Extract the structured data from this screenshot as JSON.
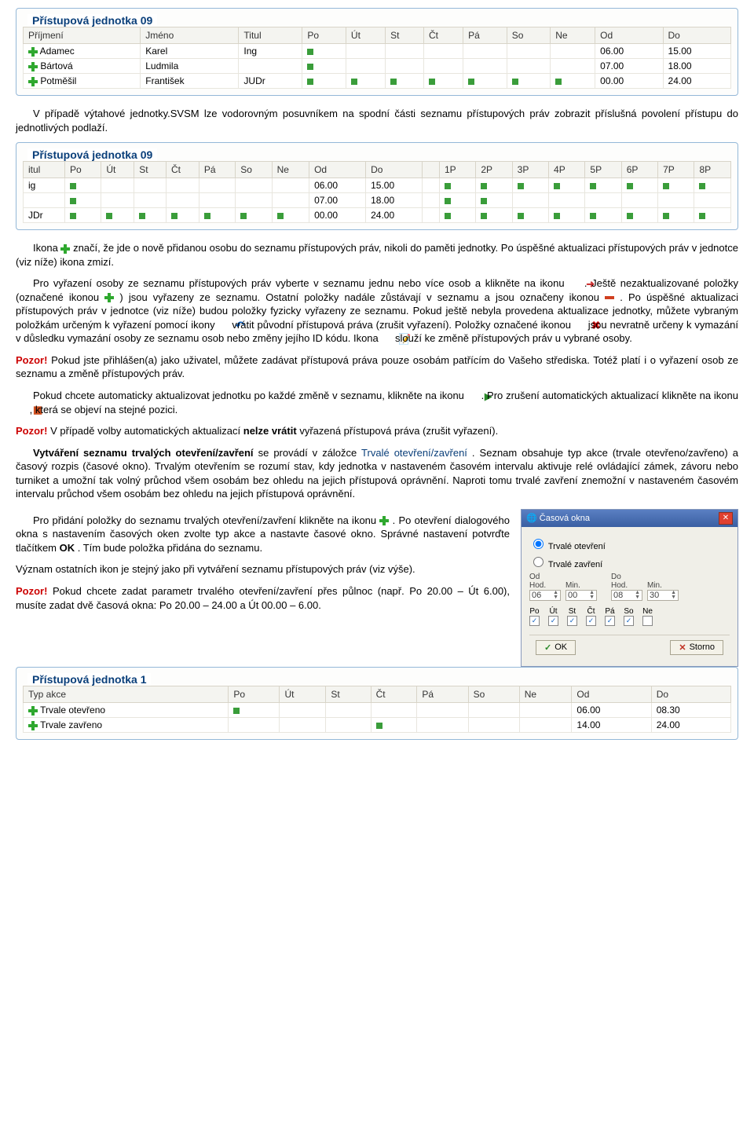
{
  "group1": {
    "title": "Přístupová jednotka 09",
    "cols": [
      "Příjmení",
      "Jméno",
      "Titul",
      "Po",
      "Út",
      "St",
      "Čt",
      "Pá",
      "So",
      "Ne",
      "Od",
      "Do"
    ],
    "rows": [
      {
        "prijmeni": "Adamec",
        "jmeno": "Karel",
        "titul": "Ing",
        "days": [
          1,
          0,
          0,
          0,
          0,
          0,
          0
        ],
        "od": "06.00",
        "do": "15.00"
      },
      {
        "prijmeni": "Bártová",
        "jmeno": "Ludmila",
        "titul": "",
        "days": [
          1,
          0,
          0,
          0,
          0,
          0,
          0
        ],
        "od": "07.00",
        "do": "18.00"
      },
      {
        "prijmeni": "Potměšil",
        "jmeno": "František",
        "titul": "JUDr",
        "days": [
          1,
          1,
          1,
          1,
          1,
          1,
          1
        ],
        "od": "00.00",
        "do": "24.00"
      }
    ]
  },
  "para1": "V případě výtahové jednotky.SVSM lze vodorovným posuvníkem na spodní části seznamu přístupových práv zobrazit příslušná povolení přístupu do jednotlivých podlaží.",
  "group2": {
    "title": "Přístupová jednotka 09",
    "cols": [
      "itul",
      "Po",
      "Út",
      "St",
      "Čt",
      "Pá",
      "So",
      "Ne",
      "Od",
      "Do",
      "",
      "1P",
      "2P",
      "3P",
      "4P",
      "5P",
      "6P",
      "7P",
      "8P"
    ],
    "rows": [
      {
        "titul": "ig",
        "days": [
          1,
          0,
          0,
          0,
          0,
          0,
          0
        ],
        "od": "06.00",
        "do": "15.00",
        "floors": [
          1,
          1,
          1,
          1,
          1,
          1,
          1,
          1
        ]
      },
      {
        "titul": "",
        "days": [
          1,
          0,
          0,
          0,
          0,
          0,
          0
        ],
        "od": "07.00",
        "do": "18.00",
        "floors": [
          1,
          1,
          0,
          0,
          0,
          0,
          0,
          0
        ]
      },
      {
        "titul": "JDr",
        "days": [
          1,
          1,
          1,
          1,
          1,
          1,
          1
        ],
        "od": "00.00",
        "do": "24.00",
        "floors": [
          1,
          1,
          1,
          1,
          1,
          1,
          1,
          1
        ]
      }
    ]
  },
  "p_ikona_a": "Ikona ",
  "p_ikona_b": " značí, že jde o nově přidanou osobu do seznamu přístupových práv, nikoli do paměti jednotky. Po úspěšné aktualizaci přístupových práv v jednotce (viz níže) ikona zmizí.",
  "p_vyrazeni_a": "Pro vyřazení osoby ze seznamu přístupových práv vyberte v seznamu jednu nebo více osob a klikněte na ikonu ",
  "p_vyrazeni_b": ". Ještě nezaktualizované položky (označené ikonou ",
  "p_vyrazeni_c": ") jsou vyřazeny ze seznamu. Ostatní položky nadále zůstávají v seznamu a jsou označeny ikonou ",
  "p_vyrazeni_d": ". Po úspěšné aktualizaci přístupových práv v jednotce (viz níže) budou položky fyzicky vyřazeny ze seznamu. Pokud ještě nebyla provedena aktualizace jednotky, můžete vybraným položkám určeným k vyřazení pomocí ikony ",
  "p_vyrazeni_e": " vrátit původní přístupová práva (zrušit vyřazení). Položky označené ikonou ",
  "p_vyrazeni_f": " jsou nevratně určeny k vymazání v důsledku vymazání osoby ze seznamu osob nebo změny jejího ID kódu. Ikona ",
  "p_vyrazeni_g": " slouží ke změně přístupových práv u vybrané osoby.",
  "pozor": "Pozor!",
  "p_pozor1": "   Pokud jste přihlášen(a) jako uživatel, můžete zadávat přístupová práva pouze osobám patřícím do Vašeho střediska. Totéž platí i o vyřazení osob ze seznamu a změně přístupových práv.",
  "p_auto_a": "Pokud chcete automaticky aktualizovat jednotku po každé změně  v seznamu, klikněte na ikonu ",
  "p_auto_b": ". Pro zrušení automatických aktualizací klikněte na ikonu ",
  "p_auto_c": ", která se objeví na stejné pozici.",
  "p_pozor2_a": "   V případě volby automatických aktualizací ",
  "p_pozor2_b": "nelze vrátit",
  "p_pozor2_c": "  vyřazená přístupová práva (zrušit vyřazení).",
  "p_trvale_head": "Vytváření seznamu trvalých otevření/zavření",
  "p_trvale_a": " se provádí  v záložce ",
  "p_trvale_tab": "Trvalé otevření/zavření",
  "p_trvale_b": ". Seznam obsahuje typ akce (trvale otevřeno/zavřeno) a časový rozpis (časové okno). Trvalým otevřením se rozumí stav, kdy jednotka v nastaveném časovém intervalu aktivuje relé ovládající zámek, závoru nebo turniket a umožní tak volný průchod všem osobám bez ohledu na jejich přístupová oprávnění. Naproti tomu trvalé zavření znemožní v nastaveném časovém intervalu průchod všem osobám bez ohledu na jejich přístupová oprávnění.",
  "p_add_a": "Pro přidání položky do seznamu trvalých otevření/zavření klikněte na ikonu ",
  "p_add_b": ". Po otevření dialogového okna s nastavením časových oken zvolte typ akce a nastavte časové okno. Správné nastavení potvrďte tlačítkem ",
  "p_add_ok": "OK",
  "p_add_c": ". Tím bude položka přidána do seznamu.",
  "p_add_d": "Význam ostatních ikon je stejný jako při vytváření seznamu přístupových práv (viz výše).",
  "p_pozor3_a": "   Pokud chcete zadat parametr trvalého otevření/zavření přes půlnoc (např. Po 20.00 – Út 6.00), musíte zadat dvě časová okna: Po 20.00 – 24.00 a Út 00.00 – 6.00.",
  "dialog": {
    "title": "Časová okna",
    "opt1": "Trvalé otevření",
    "opt2": "Trvalé zavření",
    "od": "Od",
    "do": "Do",
    "hod": "Hod.",
    "min": "Min.",
    "vals": {
      "oh": "06",
      "om": "00",
      "dh": "08",
      "dm": "30"
    },
    "days": [
      "Po",
      "Út",
      "St",
      "Čt",
      "Pá",
      "So",
      "Ne"
    ],
    "checked": [
      1,
      1,
      1,
      1,
      1,
      1,
      0
    ],
    "ok": "OK",
    "storno": "Storno"
  },
  "group3": {
    "title": "Přístupová jednotka 1",
    "cols": [
      "Typ akce",
      "Po",
      "Út",
      "St",
      "Čt",
      "Pá",
      "So",
      "Ne",
      "Od",
      "Do"
    ],
    "rows": [
      {
        "akce": "Trvale otevřeno",
        "days": [
          1,
          0,
          0,
          0,
          0,
          0,
          0
        ],
        "od": "06.00",
        "do": "08.30"
      },
      {
        "akce": "Trvale zavřeno",
        "days": [
          0,
          0,
          0,
          1,
          0,
          0,
          0
        ],
        "od": "14.00",
        "do": "24.00"
      }
    ]
  },
  "colors": {
    "green": "#3a9d3a",
    "border": "#94b8d8",
    "legend": "#0a3f7a"
  }
}
